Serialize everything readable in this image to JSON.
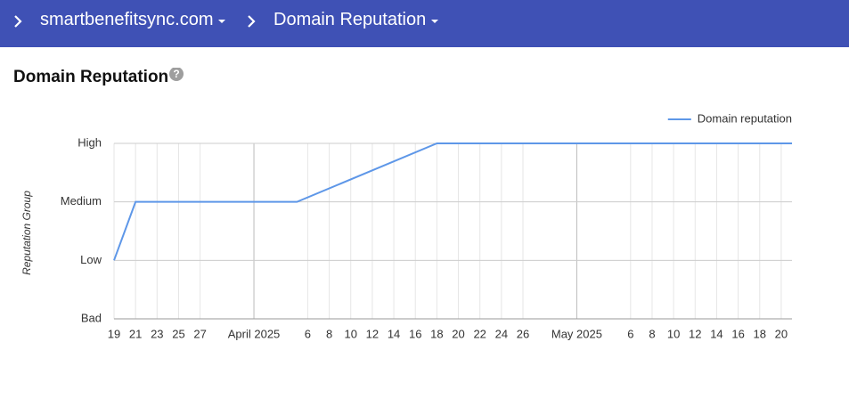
{
  "header": {
    "breadcrumbs": [
      "smartbenefitsync.com",
      "Domain Reputation"
    ]
  },
  "page_title": "Domain Reputation",
  "chart_data": {
    "type": "line",
    "y_label": "Reputation Group",
    "x": [
      "2025-03-19",
      "2025-03-21",
      "2025-04-05",
      "2025-04-18",
      "2025-05-21"
    ],
    "series": [
      {
        "name": "Domain reputation",
        "color": "#5e97e8",
        "values": [
          1,
          2,
          2,
          3,
          3
        ]
      }
    ],
    "xlim": [
      "2025-03-19",
      "2025-05-21"
    ],
    "xticks": [
      {
        "value": "2025-03-19",
        "label": "19"
      },
      {
        "value": "2025-03-21",
        "label": "21"
      },
      {
        "value": "2025-03-23",
        "label": "23"
      },
      {
        "value": "2025-03-25",
        "label": "25"
      },
      {
        "value": "2025-03-27",
        "label": "27"
      },
      {
        "value": "2025-04-01",
        "label": "April 2025"
      },
      {
        "value": "2025-04-06",
        "label": "6"
      },
      {
        "value": "2025-04-08",
        "label": "8"
      },
      {
        "value": "2025-04-10",
        "label": "10"
      },
      {
        "value": "2025-04-12",
        "label": "12"
      },
      {
        "value": "2025-04-14",
        "label": "14"
      },
      {
        "value": "2025-04-16",
        "label": "16"
      },
      {
        "value": "2025-04-18",
        "label": "18"
      },
      {
        "value": "2025-04-20",
        "label": "20"
      },
      {
        "value": "2025-04-22",
        "label": "22"
      },
      {
        "value": "2025-04-24",
        "label": "24"
      },
      {
        "value": "2025-04-26",
        "label": "26"
      },
      {
        "value": "2025-05-01",
        "label": "May 2025"
      },
      {
        "value": "2025-05-06",
        "label": "6"
      },
      {
        "value": "2025-05-08",
        "label": "8"
      },
      {
        "value": "2025-05-10",
        "label": "10"
      },
      {
        "value": "2025-05-12",
        "label": "12"
      },
      {
        "value": "2025-05-14",
        "label": "14"
      },
      {
        "value": "2025-05-16",
        "label": "16"
      },
      {
        "value": "2025-05-18",
        "label": "18"
      },
      {
        "value": "2025-05-20",
        "label": "20"
      }
    ],
    "ylim": [
      0,
      3
    ],
    "yticks": [
      {
        "value": 0,
        "label": "Bad"
      },
      {
        "value": 1,
        "label": "Low"
      },
      {
        "value": 2,
        "label": "Medium"
      },
      {
        "value": 3,
        "label": "High"
      }
    ],
    "grid": true,
    "legend": "top-right"
  }
}
